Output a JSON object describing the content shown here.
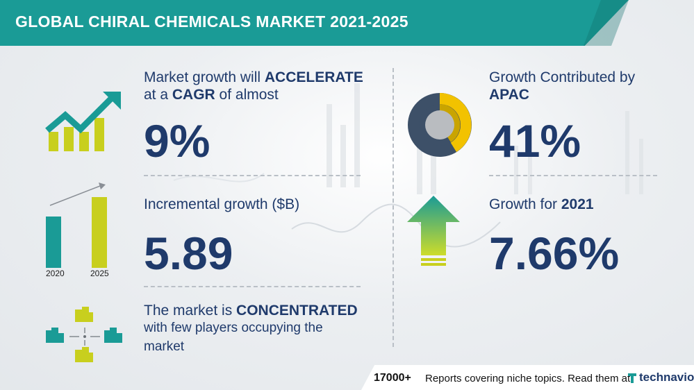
{
  "title": "GLOBAL CHIRAL CHEMICALS MARKET 2021-2025",
  "cagr": {
    "line1_prefix": "Market growth will ",
    "line1_bold": "ACCELERATE",
    "line2_prefix": "at a ",
    "line2_bold": "CAGR",
    "line2_suffix": " of almost",
    "value": "9%"
  },
  "incremental": {
    "label": "Incremental growth ($B)",
    "value": "5.89",
    "bar_years": [
      "2020",
      "2025"
    ]
  },
  "concentration": {
    "line1_prefix": "The market is ",
    "line1_bold": "CONCENTRATED",
    "line2": "with few players occupying the",
    "line3": "market"
  },
  "region": {
    "line1": "Growth Contributed by",
    "line2_bold": "APAC",
    "value": "41%"
  },
  "yoy": {
    "label_prefix": "Growth for ",
    "label_bold": "2021",
    "value": "7.66%"
  },
  "footer": {
    "count": "17000+",
    "text": "Reports covering niche topics. Read them at",
    "logo": "technavio"
  },
  "colors": {
    "teal": "#1a9b96",
    "navy": "#1f3a6b",
    "lime": "#c8cf1e",
    "donut_yellow": "#f2c200",
    "donut_dark": "#3d5068",
    "arrow_top": "#1a9b96",
    "arrow_bottom": "#cddc2a"
  }
}
